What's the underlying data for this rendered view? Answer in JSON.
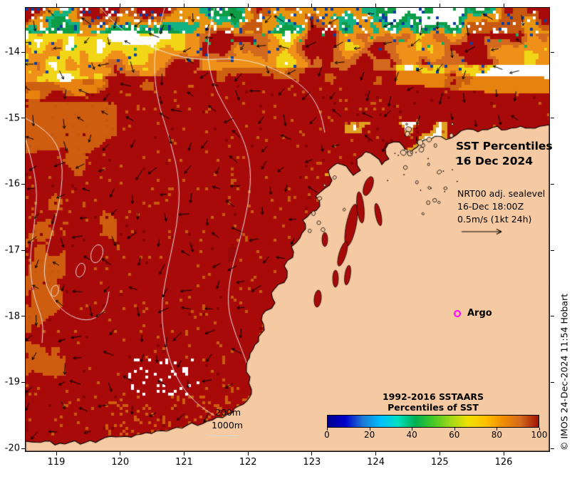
{
  "map": {
    "title_line1": "SST Percentiles",
    "title_line2": "16 Dec 2024",
    "info_line1": "NRT00 adj. sealevel",
    "info_line2": "16-Dec 18:00Z",
    "info_line3": "0.5m/s (1kt 24h)",
    "argo_label": "Argo",
    "contour_label_200": "200m",
    "contour_label_1000": "1000m"
  },
  "axes": {
    "x_tick_labels": [
      "119",
      "120",
      "121",
      "122",
      "123",
      "124",
      "125",
      "126"
    ],
    "y_tick_labels": [
      "-14",
      "-15",
      "-16",
      "-17",
      "-18",
      "-19",
      "-20"
    ]
  },
  "legend": {
    "title_line1": "1992-2016 SSTAARS",
    "title_line2": "Percentiles of SST",
    "tick_labels": [
      "0",
      "20",
      "40",
      "60",
      "80",
      "100"
    ],
    "gradient_colors": [
      "#00008b",
      "#0000cd",
      "#1e78d2",
      "#00bfff",
      "#00e0c0",
      "#00b050",
      "#46c828",
      "#a0d818",
      "#f0e000",
      "#ffc000",
      "#f08c00",
      "#d2691e",
      "#a01000"
    ]
  },
  "colors": {
    "land": "#f5c9a2",
    "ocean": "#a80a0a",
    "coastline": "#000000",
    "contour_line": "#f0f0f0",
    "arrow": "#000000",
    "argo_marker": "#ff00ff",
    "background": "#ffffff"
  },
  "credit": "© IMOS 24-Dec-2024 11:54 Hobart"
}
